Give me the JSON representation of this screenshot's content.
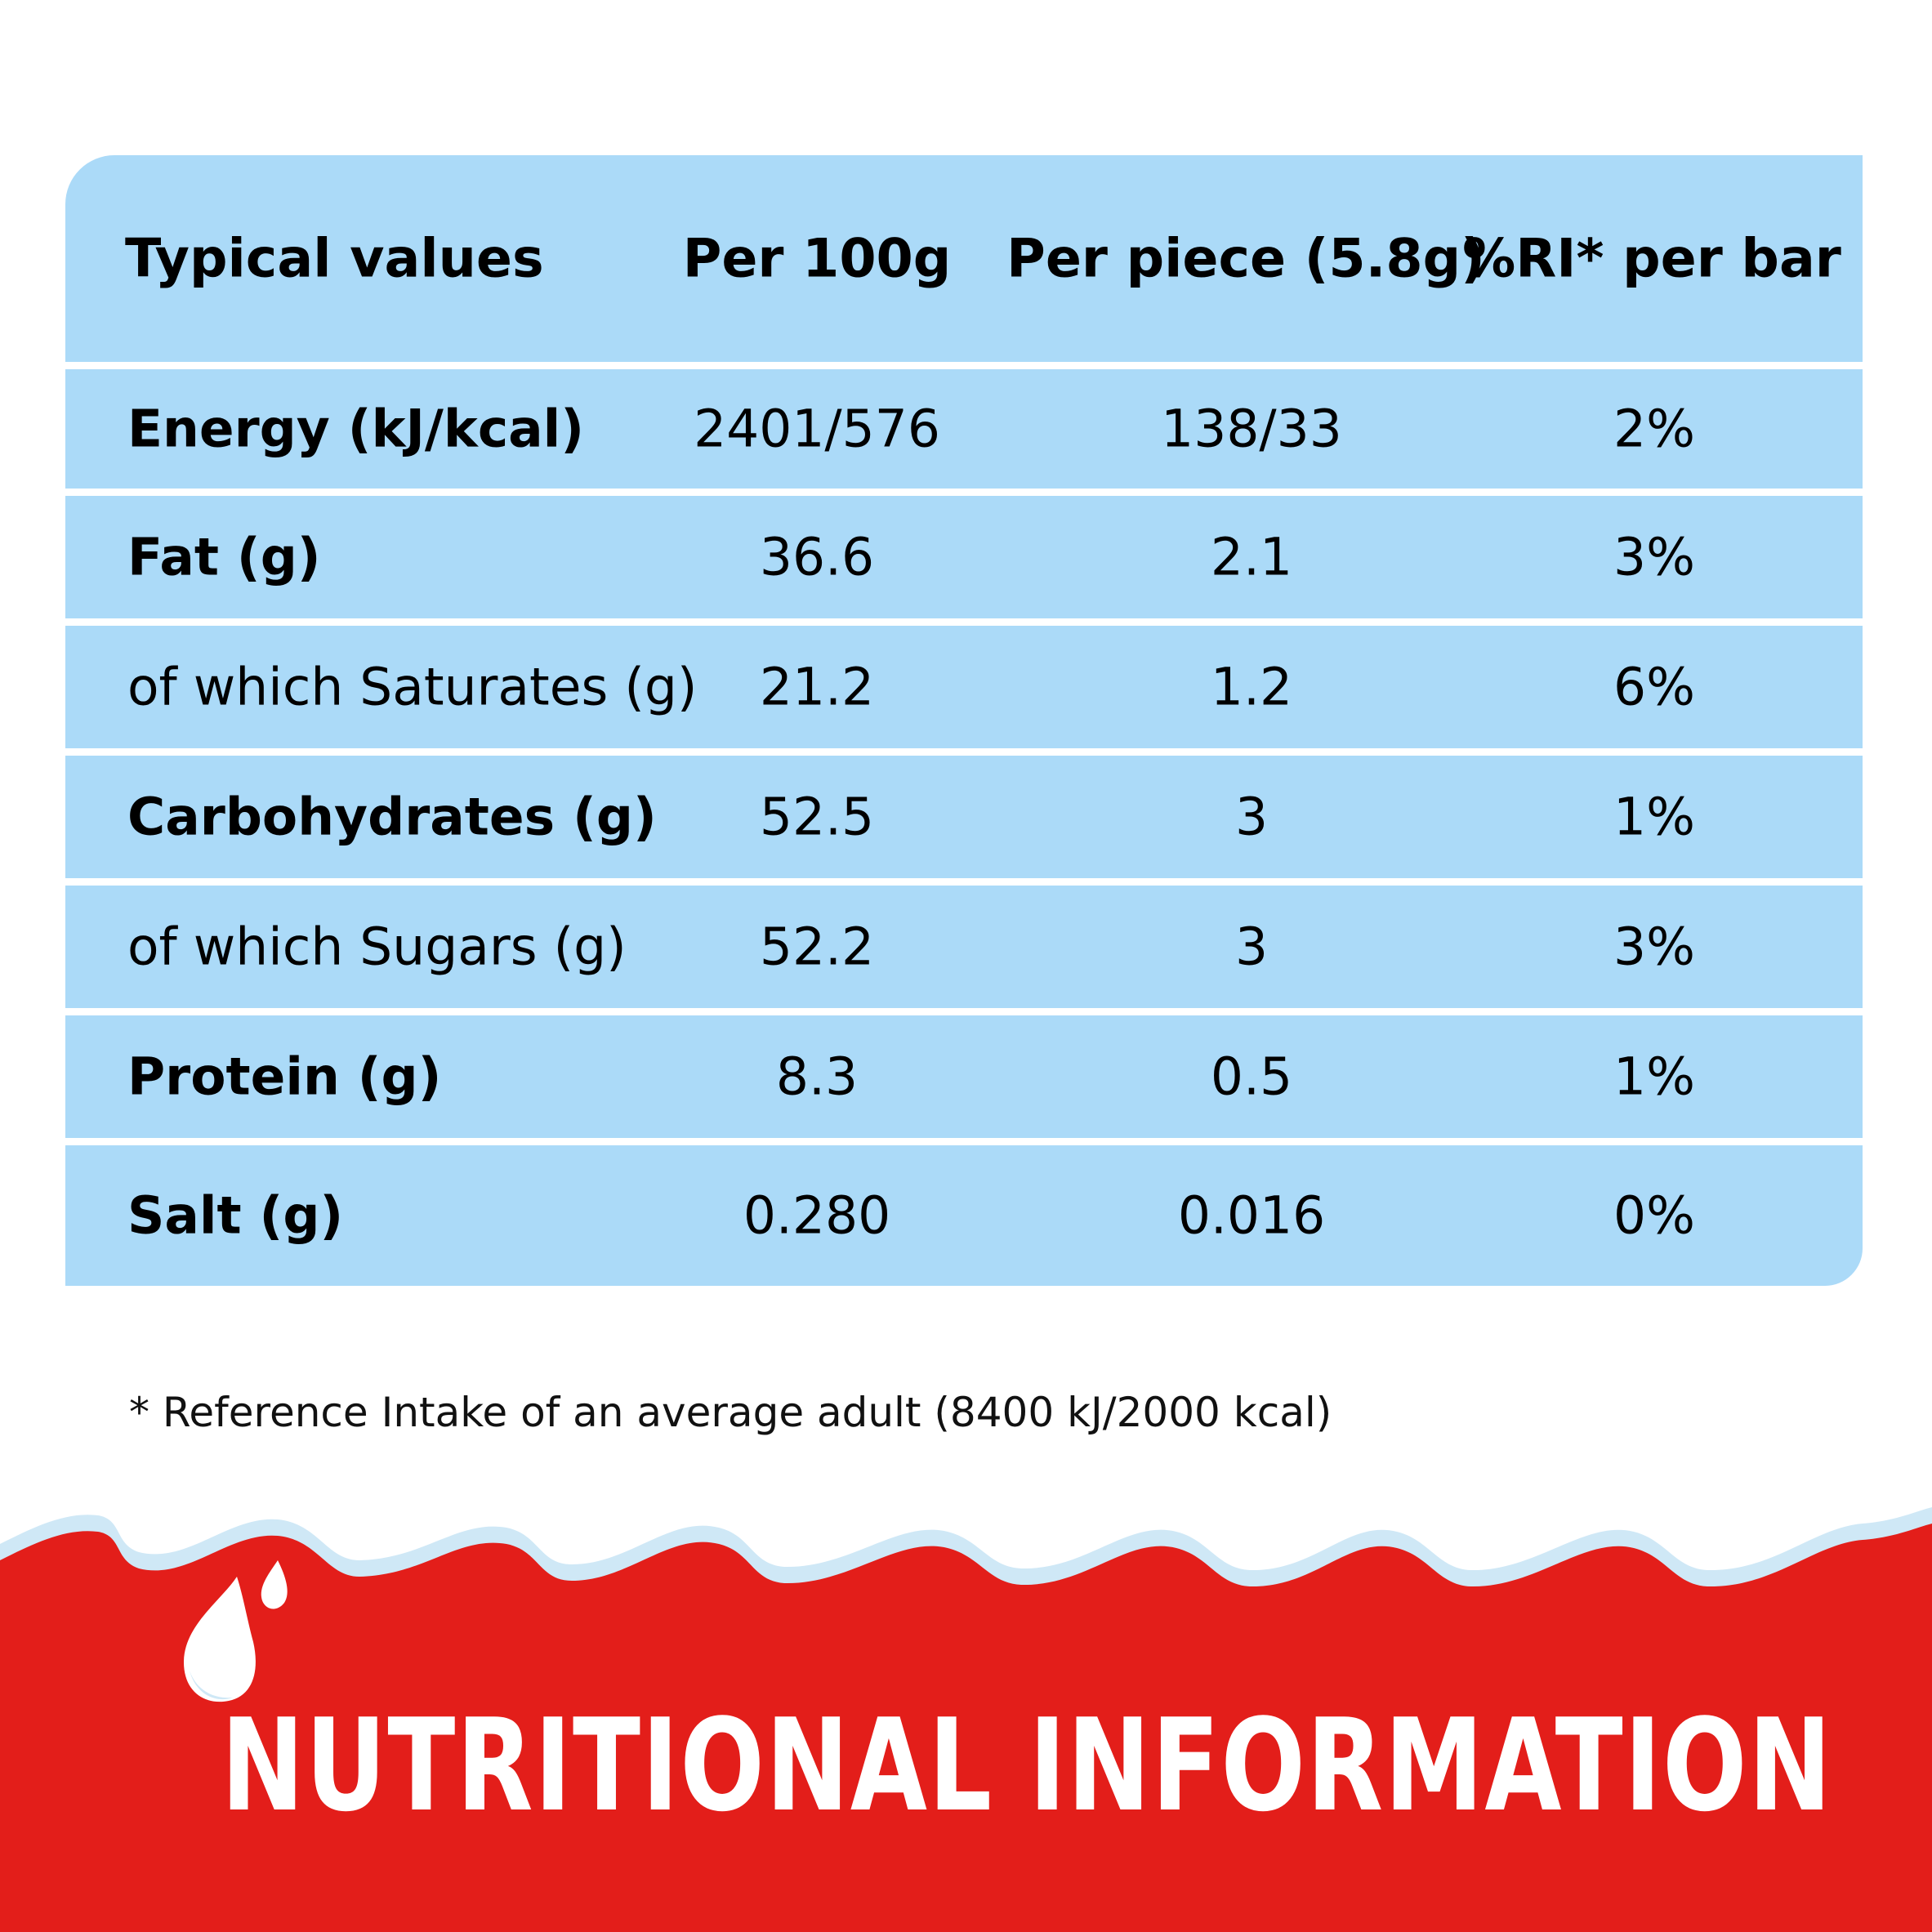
{
  "table": {
    "header": {
      "name": "Typical values",
      "per100": "Per 100g",
      "perPiece": "Per piece (5.8g)",
      "ri": "%RI* per bar"
    },
    "rows": [
      {
        "name": "Energy (kJ/kcal)",
        "bold": true,
        "per100": "2401/576",
        "perPiece": "138/33",
        "ri": "2%"
      },
      {
        "name": "Fat (g)",
        "bold": true,
        "per100": "36.6",
        "perPiece": "2.1",
        "ri": "3%"
      },
      {
        "name": "of which Saturates (g)",
        "bold": false,
        "per100": "21.2",
        "perPiece": "1.2",
        "ri": "6%"
      },
      {
        "name": "Carbohydrates (g)",
        "bold": true,
        "per100": "52.5",
        "perPiece": "3",
        "ri": "1%"
      },
      {
        "name": "of which Sugars (g)",
        "bold": false,
        "per100": "52.2",
        "perPiece": "3",
        "ri": "3%"
      },
      {
        "name": "Protein (g)",
        "bold": true,
        "per100": "8.3",
        "perPiece": "0.5",
        "ri": "1%"
      },
      {
        "name": "Salt (g)",
        "bold": true,
        "per100": "0.280",
        "perPiece": "0.016",
        "ri": "0%"
      }
    ]
  },
  "footnote": "* Reference Intake of an average adult (8400 kJ/2000 kcal)",
  "banner": {
    "title": "NUTRITIONAL INFORMATION"
  },
  "colors": {
    "table_bg": "#abdaf8",
    "banner_red": "#e31e1a",
    "milk_white": "#ffffff",
    "milk_shadow": "#cfe8f6"
  }
}
